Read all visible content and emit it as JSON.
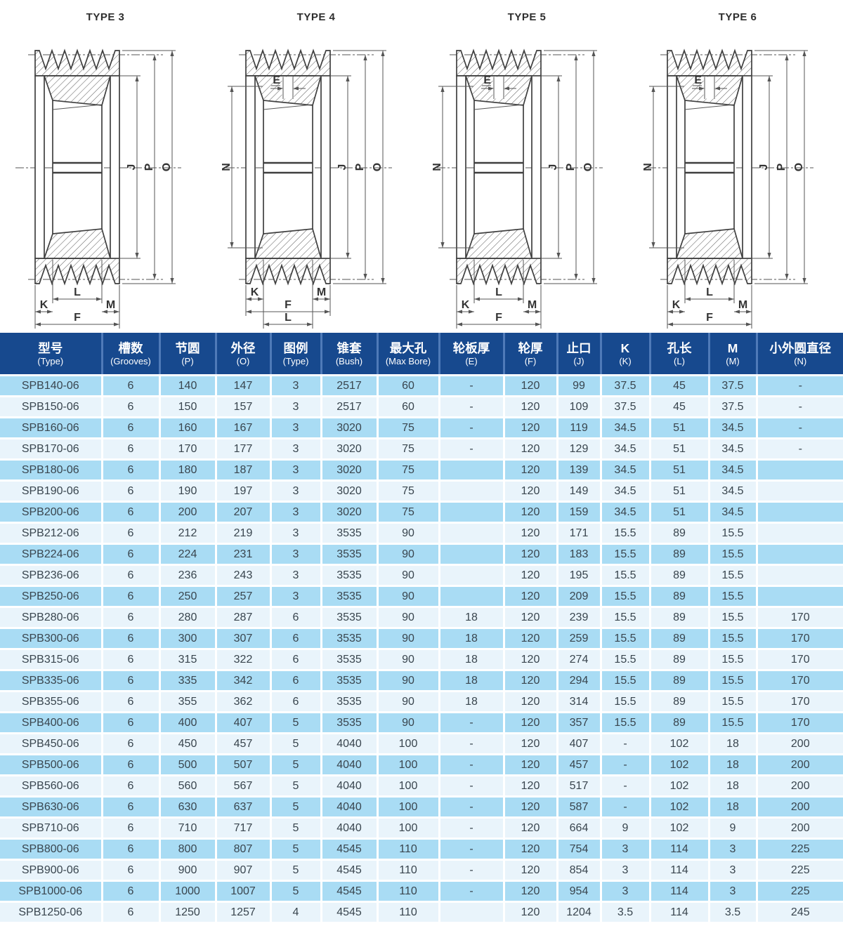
{
  "colors": {
    "header_bg": "#17498e",
    "header_divider": "#4f7ab8",
    "row_blue": "#a9dcf4",
    "row_light": "#e9f4fb",
    "cell_text": "#39454e",
    "line": "#555555"
  },
  "diagrams": [
    {
      "title": "TYPE 3",
      "show_n": false,
      "show_e": false,
      "l_last": false,
      "labels": {
        "j": "J",
        "p": "P",
        "o": "O",
        "k": "K",
        "l": "L",
        "m": "M",
        "f": "F",
        "n": "N",
        "e": "E"
      }
    },
    {
      "title": "TYPE 4",
      "show_n": true,
      "show_e": true,
      "l_last": true,
      "labels": {
        "j": "J",
        "p": "P",
        "o": "O",
        "k": "K",
        "l": "L",
        "m": "M",
        "f": "F",
        "n": "N",
        "e": "E"
      }
    },
    {
      "title": "TYPE 5",
      "show_n": true,
      "show_e": true,
      "l_last": false,
      "labels": {
        "j": "J",
        "p": "P",
        "o": "O",
        "k": "K",
        "l": "L",
        "m": "M",
        "f": "F",
        "n": "N",
        "e": "E"
      }
    },
    {
      "title": "TYPE 6",
      "show_n": true,
      "show_e": true,
      "l_last": false,
      "labels": {
        "j": "J",
        "p": "P",
        "o": "O",
        "k": "K",
        "l": "L",
        "m": "M",
        "f": "F",
        "n": "N",
        "e": "E"
      }
    }
  ],
  "table": {
    "headers": [
      {
        "cn": "型号",
        "en": "(Type)"
      },
      {
        "cn": "槽数",
        "en": "(Grooves)"
      },
      {
        "cn": "节圆",
        "en": "(P)"
      },
      {
        "cn": "外径",
        "en": "(O)"
      },
      {
        "cn": "图例",
        "en": "(Type)"
      },
      {
        "cn": "锥套",
        "en": "(Bush)"
      },
      {
        "cn": "最大孔",
        "en": "(Max Bore)"
      },
      {
        "cn": "轮板厚",
        "en": "(E)"
      },
      {
        "cn": "轮厚",
        "en": "(F)"
      },
      {
        "cn": "止口",
        "en": "(J)"
      },
      {
        "cn": "K",
        "en": "(K)"
      },
      {
        "cn": "孔长",
        "en": "(L)"
      },
      {
        "cn": "M",
        "en": "(M)"
      },
      {
        "cn": "小外圆直径",
        "en": "(N)"
      }
    ],
    "rows": [
      [
        "SPB140-06",
        "6",
        "140",
        "147",
        "3",
        "2517",
        "60",
        "-",
        "120",
        "99",
        "37.5",
        "45",
        "37.5",
        "-"
      ],
      [
        "SPB150-06",
        "6",
        "150",
        "157",
        "3",
        "2517",
        "60",
        "-",
        "120",
        "109",
        "37.5",
        "45",
        "37.5",
        "-"
      ],
      [
        "SPB160-06",
        "6",
        "160",
        "167",
        "3",
        "3020",
        "75",
        "-",
        "120",
        "119",
        "34.5",
        "51",
        "34.5",
        "-"
      ],
      [
        "SPB170-06",
        "6",
        "170",
        "177",
        "3",
        "3020",
        "75",
        "-",
        "120",
        "129",
        "34.5",
        "51",
        "34.5",
        "-"
      ],
      [
        "SPB180-06",
        "6",
        "180",
        "187",
        "3",
        "3020",
        "75",
        "",
        "120",
        "139",
        "34.5",
        "51",
        "34.5",
        ""
      ],
      [
        "SPB190-06",
        "6",
        "190",
        "197",
        "3",
        "3020",
        "75",
        "",
        "120",
        "149",
        "34.5",
        "51",
        "34.5",
        ""
      ],
      [
        "SPB200-06",
        "6",
        "200",
        "207",
        "3",
        "3020",
        "75",
        "",
        "120",
        "159",
        "34.5",
        "51",
        "34.5",
        ""
      ],
      [
        "SPB212-06",
        "6",
        "212",
        "219",
        "3",
        "3535",
        "90",
        "",
        "120",
        "171",
        "15.5",
        "89",
        "15.5",
        ""
      ],
      [
        "SPB224-06",
        "6",
        "224",
        "231",
        "3",
        "3535",
        "90",
        "",
        "120",
        "183",
        "15.5",
        "89",
        "15.5",
        ""
      ],
      [
        "SPB236-06",
        "6",
        "236",
        "243",
        "3",
        "3535",
        "90",
        "",
        "120",
        "195",
        "15.5",
        "89",
        "15.5",
        ""
      ],
      [
        "SPB250-06",
        "6",
        "250",
        "257",
        "3",
        "3535",
        "90",
        "",
        "120",
        "209",
        "15.5",
        "89",
        "15.5",
        ""
      ],
      [
        "SPB280-06",
        "6",
        "280",
        "287",
        "6",
        "3535",
        "90",
        "18",
        "120",
        "239",
        "15.5",
        "89",
        "15.5",
        "170"
      ],
      [
        "SPB300-06",
        "6",
        "300",
        "307",
        "6",
        "3535",
        "90",
        "18",
        "120",
        "259",
        "15.5",
        "89",
        "15.5",
        "170"
      ],
      [
        "SPB315-06",
        "6",
        "315",
        "322",
        "6",
        "3535",
        "90",
        "18",
        "120",
        "274",
        "15.5",
        "89",
        "15.5",
        "170"
      ],
      [
        "SPB335-06",
        "6",
        "335",
        "342",
        "6",
        "3535",
        "90",
        "18",
        "120",
        "294",
        "15.5",
        "89",
        "15.5",
        "170"
      ],
      [
        "SPB355-06",
        "6",
        "355",
        "362",
        "6",
        "3535",
        "90",
        "18",
        "120",
        "314",
        "15.5",
        "89",
        "15.5",
        "170"
      ],
      [
        "SPB400-06",
        "6",
        "400",
        "407",
        "5",
        "3535",
        "90",
        "-",
        "120",
        "357",
        "15.5",
        "89",
        "15.5",
        "170"
      ],
      [
        "SPB450-06",
        "6",
        "450",
        "457",
        "5",
        "4040",
        "100",
        "-",
        "120",
        "407",
        "-",
        "102",
        "18",
        "200"
      ],
      [
        "SPB500-06",
        "6",
        "500",
        "507",
        "5",
        "4040",
        "100",
        "-",
        "120",
        "457",
        "-",
        "102",
        "18",
        "200"
      ],
      [
        "SPB560-06",
        "6",
        "560",
        "567",
        "5",
        "4040",
        "100",
        "-",
        "120",
        "517",
        "-",
        "102",
        "18",
        "200"
      ],
      [
        "SPB630-06",
        "6",
        "630",
        "637",
        "5",
        "4040",
        "100",
        "-",
        "120",
        "587",
        "-",
        "102",
        "18",
        "200"
      ],
      [
        "SPB710-06",
        "6",
        "710",
        "717",
        "5",
        "4040",
        "100",
        "-",
        "120",
        "664",
        "9",
        "102",
        "9",
        "200"
      ],
      [
        "SPB800-06",
        "6",
        "800",
        "807",
        "5",
        "4545",
        "110",
        "-",
        "120",
        "754",
        "3",
        "114",
        "3",
        "225"
      ],
      [
        "SPB900-06",
        "6",
        "900",
        "907",
        "5",
        "4545",
        "110",
        "-",
        "120",
        "854",
        "3",
        "114",
        "3",
        "225"
      ],
      [
        "SPB1000-06",
        "6",
        "1000",
        "1007",
        "5",
        "4545",
        "110",
        "-",
        "120",
        "954",
        "3",
        "114",
        "3",
        "225"
      ],
      [
        "SPB1250-06",
        "6",
        "1250",
        "1257",
        "4",
        "4545",
        "110",
        "",
        "120",
        "1204",
        "3.5",
        "114",
        "3.5",
        "245"
      ]
    ]
  }
}
